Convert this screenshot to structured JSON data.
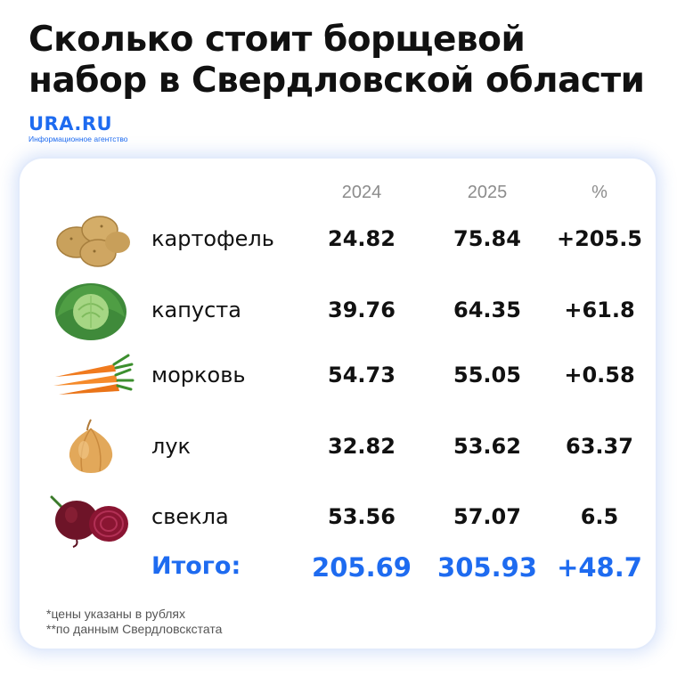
{
  "title_line1": "Сколько стоит борщевой",
  "title_line2": "набор в Свердловской области",
  "logo": {
    "name": "URA.RU",
    "subtitle": "Информационное агентство",
    "color": "#1e6bf0"
  },
  "table": {
    "headers": [
      "2024",
      "2025",
      "%"
    ],
    "rows": [
      {
        "name": "картофель",
        "icon": "potato-icon",
        "y2024": "24.82",
        "y2025": "75.84",
        "pct": "+205.5"
      },
      {
        "name": "капуста",
        "icon": "cabbage-icon",
        "y2024": "39.76",
        "y2025": "64.35",
        "pct": "+61.8"
      },
      {
        "name": "морковь",
        "icon": "carrot-icon",
        "y2024": "54.73",
        "y2025": "55.05",
        "pct": "+0.58"
      },
      {
        "name": "лук",
        "icon": "onion-icon",
        "y2024": "32.82",
        "y2025": "53.62",
        "pct": "63.37"
      },
      {
        "name": "свекла",
        "icon": "beet-icon",
        "y2024": "53.56",
        "y2025": "57.07",
        "pct": "6.5"
      }
    ],
    "total": {
      "label": "Итого:",
      "y2024": "205.69",
      "y2025": "305.93",
      "pct": "+48.7"
    }
  },
  "footnotes": [
    "*цены указаны в рублях",
    "**по данным Свердловскстата"
  ],
  "accent_color": "#1e6bf0"
}
